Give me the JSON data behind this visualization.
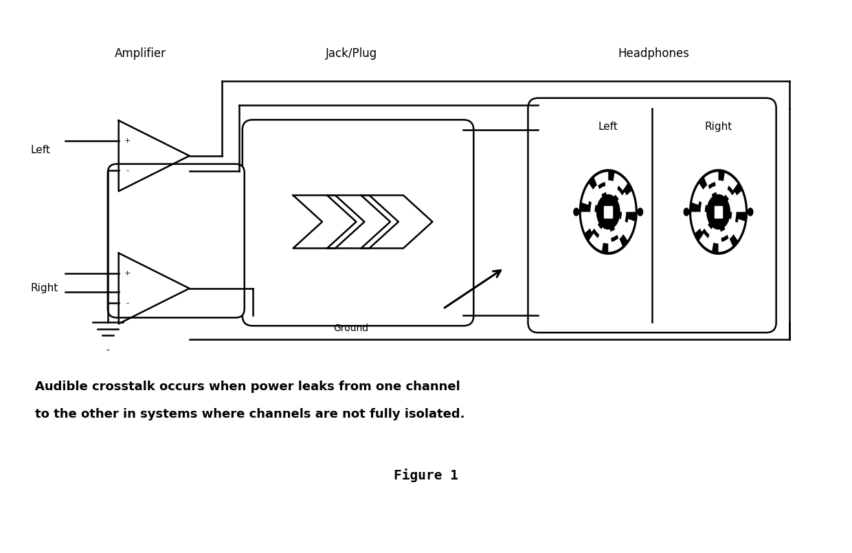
{
  "bg_color": "#ffffff",
  "line_color": "#000000",
  "title_amplifier": "Amplifier",
  "title_jackplug": "Jack/Plug",
  "title_headphones": "Headphones",
  "label_left": "Left",
  "label_right": "Right",
  "label_left_hp": "Left",
  "label_right_hp": "Right",
  "label_ground": "Ground",
  "annotation_text1": "Audible crosstalk occurs when power leaks from one channel",
  "annotation_text2": "to the other in systems where channels are not fully isolated.",
  "figure_label": "Figure 1",
  "figsize": [
    12.4,
    8.05
  ],
  "dpi": 100
}
